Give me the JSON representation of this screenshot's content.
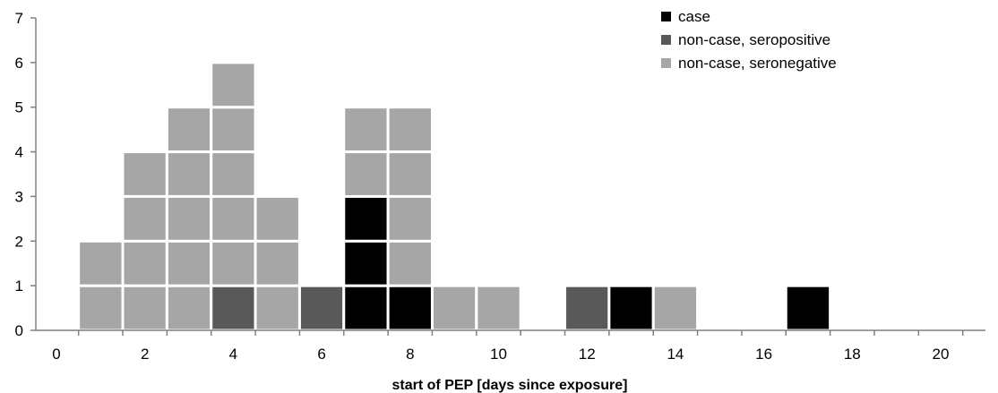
{
  "chart_data": {
    "type": "bar",
    "stacked": true,
    "xlabel": "start of PEP [days since exposure]",
    "ylabel": "",
    "x_ticks": [
      0,
      2,
      4,
      6,
      8,
      10,
      12,
      14,
      16,
      18,
      20
    ],
    "y_ticks": [
      0,
      1,
      2,
      3,
      4,
      5,
      6,
      7
    ],
    "xlim": [
      -0.5,
      21
    ],
    "ylim": [
      0,
      7
    ],
    "grid": false,
    "legend_position": "top-right",
    "x": [
      1,
      2,
      3,
      4,
      5,
      6,
      7,
      8,
      9,
      10,
      12,
      13,
      14,
      17
    ],
    "series": [
      {
        "name": "case",
        "color": "#000000",
        "values": [
          0,
          0,
          0,
          0,
          0,
          0,
          3,
          1,
          0,
          0,
          0,
          1,
          0,
          1
        ]
      },
      {
        "name": "non-case, seropositive",
        "color": "#595959",
        "values": [
          0,
          0,
          0,
          1,
          0,
          1,
          0,
          0,
          0,
          0,
          1,
          0,
          0,
          0
        ]
      },
      {
        "name": "non-case, seronegative",
        "color": "#a6a6a6",
        "values": [
          2,
          4,
          5,
          5,
          3,
          0,
          2,
          4,
          1,
          1,
          0,
          0,
          1,
          0
        ]
      }
    ]
  }
}
